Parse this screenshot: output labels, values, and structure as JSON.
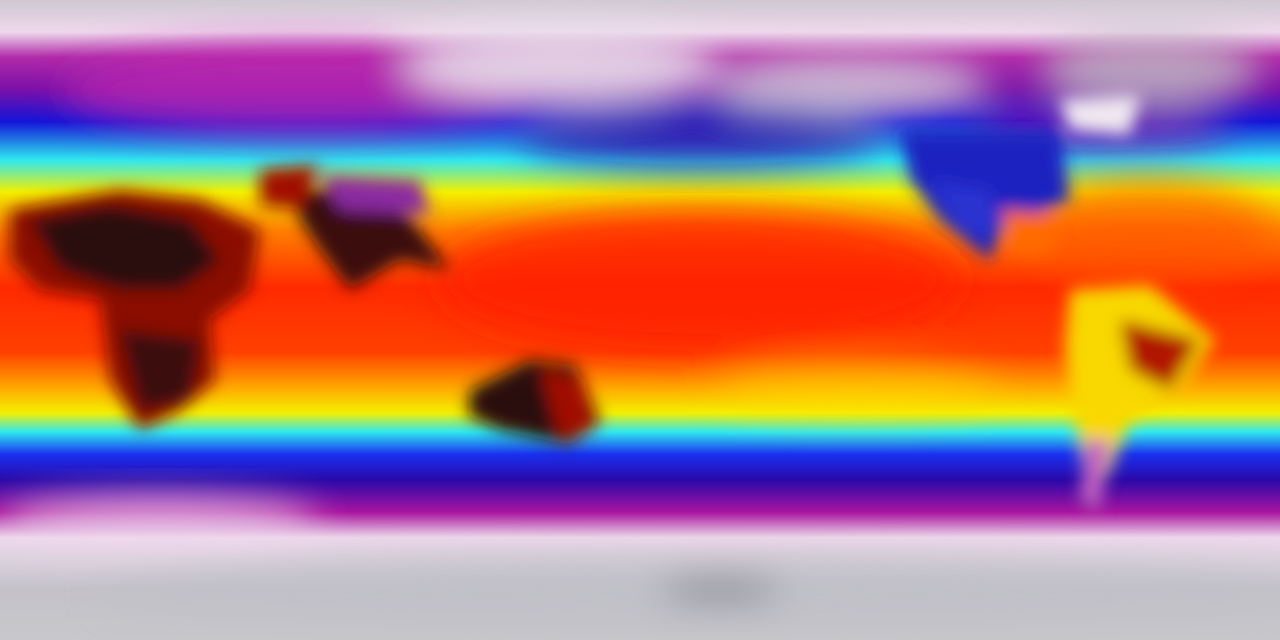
{
  "map": {
    "kind": "global temperature field, equirectangular projection",
    "palette": {
      "polar": "#c4c2c8",
      "cold_pale": "#eed8ec",
      "magenta": "#a8149f",
      "blue": "#1414d8",
      "deep_blue": "#2a08a8",
      "cyan": "#30e8f0",
      "yellow": "#f4f000",
      "orange": "#ff7000",
      "red": "#ff2a00",
      "hot_dark": "#2a1010",
      "hot_brown": "#8a1000"
    }
  }
}
